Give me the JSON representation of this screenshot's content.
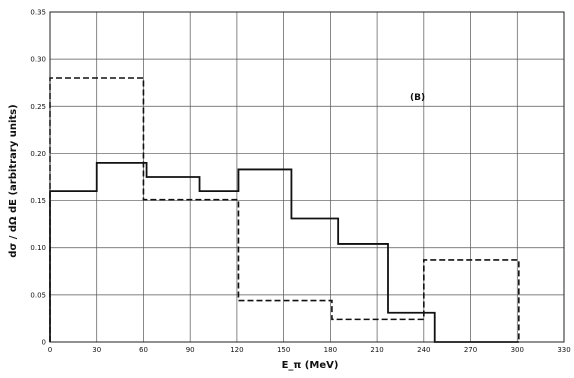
{
  "chart_data": {
    "type": "histogram",
    "title": "",
    "xlabel": "E_π (MeV)",
    "ylabel": "dσ / dΩ dE (arbitrary units)",
    "xlim": [
      0,
      330
    ],
    "ylim": [
      0,
      0.35
    ],
    "x_ticks": [
      "0",
      "30",
      "60",
      "90",
      "120",
      "150",
      "180",
      "210",
      "240",
      "270",
      "300",
      "330"
    ],
    "y_ticks": [
      "0",
      "0.05",
      "0.10",
      "0.15",
      "0.20",
      "0.25",
      "0.30",
      "0.35"
    ],
    "grid": true,
    "annotation": "(B)",
    "series": [
      {
        "style": "solid",
        "color": "#111111",
        "bins": [
          {
            "x0": 0,
            "x1": 30,
            "y": 0.16
          },
          {
            "x0": 30,
            "x1": 62,
            "y": 0.19
          },
          {
            "x0": 62,
            "x1": 96,
            "y": 0.175
          },
          {
            "x0": 96,
            "x1": 121,
            "y": 0.16
          },
          {
            "x0": 121,
            "x1": 155,
            "y": 0.183
          },
          {
            "x0": 155,
            "x1": 185,
            "y": 0.131
          },
          {
            "x0": 185,
            "x1": 217,
            "y": 0.104
          },
          {
            "x0": 217,
            "x1": 247,
            "y": 0.031
          },
          {
            "x0": 247,
            "x1": 301,
            "y": 0.0
          }
        ]
      },
      {
        "style": "dashed",
        "color": "#111111",
        "bins": [
          {
            "x0": 0,
            "x1": 60,
            "y": 0.28
          },
          {
            "x0": 60,
            "x1": 121,
            "y": 0.151
          },
          {
            "x0": 121,
            "x1": 181,
            "y": 0.044
          },
          {
            "x0": 181,
            "x1": 240,
            "y": 0.024
          },
          {
            "x0": 240,
            "x1": 301,
            "y": 0.087
          }
        ]
      }
    ]
  }
}
